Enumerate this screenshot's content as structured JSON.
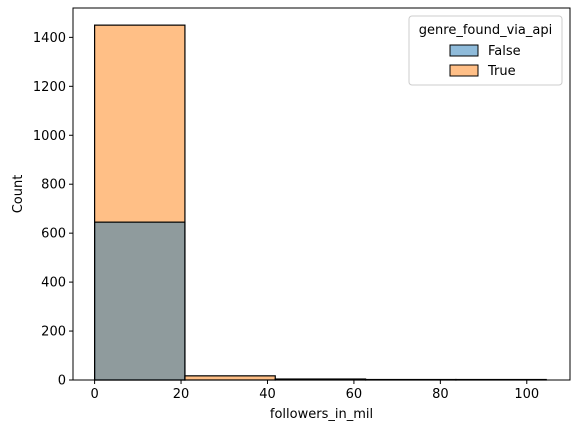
{
  "chart_data": {
    "type": "bar",
    "subtype": "stacked-histogram",
    "xlabel": "followers_in_mil",
    "ylabel": "Count",
    "xlim": [
      -5,
      110
    ],
    "ylim": [
      0,
      1520
    ],
    "x_ticks": [
      0,
      20,
      40,
      60,
      80,
      100
    ],
    "y_ticks": [
      0,
      200,
      400,
      600,
      800,
      1000,
      1200,
      1400
    ],
    "bin_edges": [
      0,
      20.9,
      41.8,
      62.7,
      83.6,
      104.5
    ],
    "legend": {
      "title": "genre_found_via_api",
      "placement": "top-right"
    },
    "series": [
      {
        "name": "False",
        "color": "#1f77b4",
        "values": [
          645,
          0,
          0,
          0,
          0
        ]
      },
      {
        "name": "True",
        "color": "#ff7f0e",
        "values": [
          805,
          17,
          4,
          2,
          2
        ]
      }
    ]
  }
}
